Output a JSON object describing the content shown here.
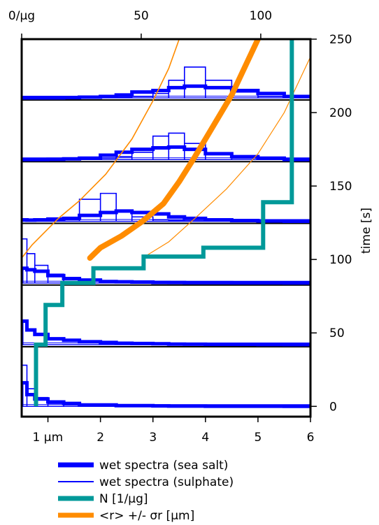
{
  "chart_data": {
    "type": "line",
    "top_axis": {
      "ticks": [
        0,
        50,
        100
      ],
      "tick_labels": [
        "0/µg",
        "50",
        "100"
      ],
      "range": [
        0,
        120.8
      ]
    },
    "bottom_axis": {
      "ticks": [
        1,
        2,
        3,
        4,
        5,
        6
      ],
      "tick_labels": [
        "1 µm",
        "2",
        "3",
        "4",
        "5",
        "6"
      ],
      "range": [
        0.5,
        6
      ]
    },
    "right_axis": {
      "title": "time [s]",
      "ticks": [
        0,
        50,
        100,
        150,
        200,
        250
      ],
      "tick_labels": [
        "0",
        "50",
        "100",
        "150",
        "200",
        "250"
      ],
      "range": [
        -7,
        250
      ]
    },
    "panel_times": [
      0,
      42,
      84,
      126,
      168,
      210
    ],
    "spectra": {
      "bin_edges": [
        0.5,
        0.6,
        0.75,
        1.0,
        1.3,
        1.6,
        2.0,
        2.3,
        2.6,
        3.0,
        3.3,
        3.6,
        4.0,
        4.5,
        5.0,
        5.5,
        6.0
      ],
      "sea_salt": [
        {
          "time": 0,
          "values": [
            16,
            8,
            5,
            3,
            2,
            1,
            1,
            0.5,
            0.5,
            0.3,
            0.2,
            0.2,
            0.1,
            0.1,
            0.1,
            0
          ]
        },
        {
          "time": 42,
          "values": [
            16,
            10,
            7,
            4,
            3,
            2,
            1.5,
            1,
            0.8,
            0.6,
            0.4,
            0.3,
            0.2,
            0.2,
            0.1,
            0
          ]
        },
        {
          "time": 84,
          "values": [
            10,
            9,
            8,
            5,
            3,
            2,
            1,
            0.8,
            0.6,
            0.4,
            0.3,
            0.2,
            0.2,
            0.1,
            0.1,
            0
          ]
        },
        {
          "time": 126,
          "values": [
            1,
            0.8,
            1,
            1.5,
            2,
            4,
            6,
            7,
            6,
            5,
            3,
            2,
            1,
            0.5,
            0.2,
            0
          ]
        },
        {
          "time": 168,
          "values": [
            0,
            0,
            0,
            0.2,
            0.5,
            1,
            3,
            5,
            7,
            8,
            8.5,
            7,
            4,
            2,
            1,
            0
          ]
        },
        {
          "time": 210,
          "values": [
            0,
            0,
            0,
            0,
            0.2,
            0.5,
            1,
            2,
            4,
            5,
            7,
            8,
            7,
            5,
            3,
            1
          ]
        }
      ],
      "sulphate": [
        {
          "time": 0,
          "values": [
            28,
            12,
            6,
            2,
            1,
            0.5,
            0.3,
            0.2,
            0.1,
            0.1,
            0.1,
            0,
            0,
            0,
            0,
            0
          ]
        },
        {
          "time": 84,
          "values": [
            30,
            20,
            12,
            6,
            3,
            2,
            1,
            0.5,
            0.3,
            0.2,
            0.1,
            0.1,
            0,
            0,
            0,
            0
          ]
        },
        {
          "time": 126,
          "values": [
            0,
            0,
            0,
            0.3,
            1,
            15,
            19,
            7,
            3,
            1,
            0.5,
            0.3,
            0.2,
            0,
            0,
            0
          ]
        },
        {
          "time": 168,
          "values": [
            0,
            0,
            0,
            0,
            0,
            0.3,
            1,
            2,
            5,
            16,
            18,
            11,
            4,
            1,
            0.5,
            0
          ]
        },
        {
          "time": 210,
          "values": [
            0,
            0,
            0,
            0,
            0,
            0,
            0.2,
            0.5,
            1,
            3,
            12,
            21,
            12,
            4,
            1,
            0
          ]
        }
      ]
    },
    "series": [
      {
        "name": "wet spectra (sea salt)",
        "color": "#0000ff",
        "style": "thick-step"
      },
      {
        "name": "wet spectra (sulphate)",
        "color": "#0000ff",
        "style": "thin-step"
      },
      {
        "name": "N [1/µg]",
        "color": "#009999",
        "style": "thick-step",
        "x_axis": "top",
        "points": [
          {
            "n": 6,
            "t": 0
          },
          {
            "n": 6,
            "t": 42
          },
          {
            "n": 10,
            "t": 42
          },
          {
            "n": 10,
            "t": 69
          },
          {
            "n": 17,
            "t": 69
          },
          {
            "n": 17,
            "t": 84
          },
          {
            "n": 30,
            "t": 84
          },
          {
            "n": 30,
            "t": 94
          },
          {
            "n": 51,
            "t": 94
          },
          {
            "n": 51,
            "t": 102
          },
          {
            "n": 76,
            "t": 102
          },
          {
            "n": 76,
            "t": 108
          },
          {
            "n": 101,
            "t": 108
          },
          {
            "n": 101,
            "t": 139
          },
          {
            "n": 113,
            "t": 139
          },
          {
            "n": 113,
            "t": 250
          }
        ]
      },
      {
        "name": "<r> +/- σr [µm]",
        "color": "#ff8c00",
        "style": "band",
        "mean": [
          {
            "r": 1.8,
            "t": 101
          },
          {
            "r": 2.0,
            "t": 108
          },
          {
            "r": 2.4,
            "t": 116
          },
          {
            "r": 2.8,
            "t": 126
          },
          {
            "r": 3.2,
            "t": 138
          },
          {
            "r": 3.5,
            "t": 153
          },
          {
            "r": 3.8,
            "t": 170
          },
          {
            "r": 4.1,
            "t": 188
          },
          {
            "r": 4.5,
            "t": 212
          },
          {
            "r": 5.0,
            "t": 250
          }
        ],
        "lower": [
          {
            "r": 0.5,
            "t": 101
          },
          {
            "r": 0.7,
            "t": 110
          },
          {
            "r": 1.2,
            "t": 128
          },
          {
            "r": 1.6,
            "t": 140
          },
          {
            "r": 2.1,
            "t": 158
          },
          {
            "r": 2.6,
            "t": 182
          },
          {
            "r": 3.0,
            "t": 208
          },
          {
            "r": 3.3,
            "t": 230
          },
          {
            "r": 3.5,
            "t": 250
          }
        ],
        "upper": [
          {
            "r": 2.8,
            "t": 101
          },
          {
            "r": 3.3,
            "t": 112
          },
          {
            "r": 3.8,
            "t": 128
          },
          {
            "r": 4.4,
            "t": 148
          },
          {
            "r": 5.0,
            "t": 172
          },
          {
            "r": 5.5,
            "t": 200
          },
          {
            "r": 6.0,
            "t": 238
          }
        ]
      }
    ],
    "legend": [
      {
        "label": "wet spectra (sea salt)",
        "color": "#0000ff",
        "width": 7
      },
      {
        "label": "wet spectra (sulphate)",
        "color": "#0000ff",
        "width": 2
      },
      {
        "label": "N [1/µg]",
        "color": "#009999",
        "width": 7
      },
      {
        "label": "<r> +/- σr [µm]",
        "color": "#ff8c00",
        "width": 7
      }
    ]
  }
}
